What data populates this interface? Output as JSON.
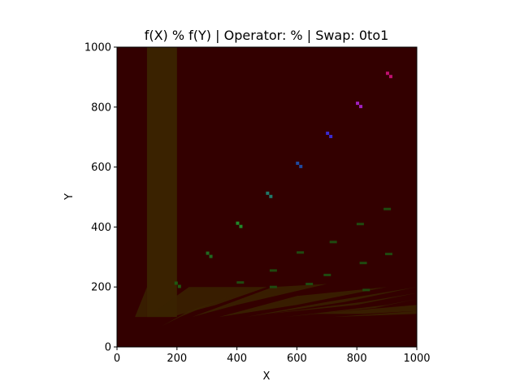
{
  "chart_data": {
    "type": "heatmap",
    "title": "f(X) % f(Y) | Operator: % | Swap: 0to1",
    "xlabel": "X",
    "ylabel": "Y",
    "xlim": [
      0,
      1000
    ],
    "ylim": [
      0,
      1000
    ],
    "xticks": [
      "0",
      "200",
      "400",
      "600",
      "800",
      "1000"
    ],
    "yticks": [
      "0",
      "200",
      "400",
      "600",
      "800",
      "1000"
    ],
    "grid": false,
    "colors": {
      "background": "#330000",
      "bands": "#3a2200",
      "vertical_band": "#3a2200"
    },
    "features": {
      "vertical_band": {
        "x": [
          100,
          200
        ],
        "y": [
          100,
          1000
        ]
      },
      "diagonal_squares": [
        {
          "x": 200,
          "y": 210,
          "color": "#1f5a10"
        },
        {
          "x": 305,
          "y": 310,
          "color": "#1f6a20"
        },
        {
          "x": 405,
          "y": 410,
          "color": "#1f8a2a"
        },
        {
          "x": 505,
          "y": 510,
          "color": "#1f7a6a"
        },
        {
          "x": 605,
          "y": 610,
          "color": "#1f4aa0"
        },
        {
          "x": 705,
          "y": 710,
          "color": "#3a2ad0"
        },
        {
          "x": 805,
          "y": 810,
          "color": "#a020c0"
        },
        {
          "x": 905,
          "y": 910,
          "color": "#c01070"
        }
      ]
    }
  }
}
